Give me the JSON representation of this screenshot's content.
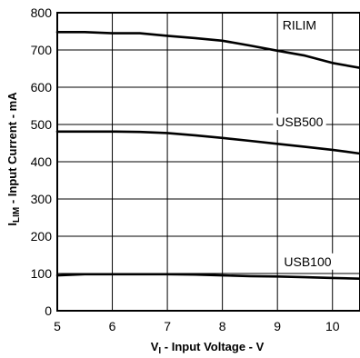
{
  "chart_data": {
    "type": "line",
    "xlabel": {
      "main": "V",
      "sub": "I",
      "rest": " - Input Voltage - V"
    },
    "ylabel": {
      "main": "I",
      "sub": "LIM",
      "rest": " - Input Current - mA"
    },
    "xlim": [
      5,
      10.5
    ],
    "ylim": [
      0,
      800
    ],
    "x_ticks": [
      5,
      6,
      7,
      8,
      9,
      10
    ],
    "y_ticks": [
      0,
      100,
      200,
      300,
      400,
      500,
      600,
      700,
      800
    ],
    "grid": true,
    "legend": "none",
    "series": [
      {
        "name": "RILIM",
        "x": [
          5.0,
          5.5,
          6.0,
          6.5,
          7.0,
          7.5,
          8.0,
          8.5,
          9.0,
          9.5,
          10.0,
          10.5
        ],
        "y": [
          748,
          748,
          745,
          745,
          738,
          732,
          725,
          712,
          698,
          685,
          665,
          652
        ]
      },
      {
        "name": "USB500",
        "x": [
          5.0,
          5.5,
          6.0,
          6.5,
          7.0,
          7.5,
          8.0,
          8.5,
          9.0,
          9.5,
          10.0,
          10.5
        ],
        "y": [
          481,
          481,
          481,
          480,
          477,
          471,
          464,
          456,
          448,
          440,
          432,
          422
        ]
      },
      {
        "name": "USB100",
        "x": [
          5.0,
          5.5,
          6.0,
          6.5,
          7.0,
          7.5,
          8.0,
          8.5,
          9.0,
          9.5,
          10.0,
          10.5
        ],
        "y": [
          95,
          98,
          98,
          98,
          98,
          97,
          95,
          93,
          92,
          90,
          88,
          86
        ]
      }
    ]
  }
}
